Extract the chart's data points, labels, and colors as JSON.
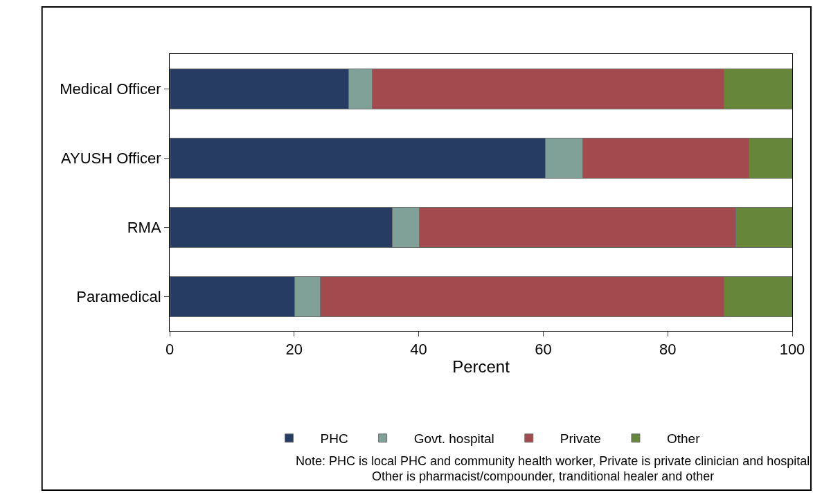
{
  "chart_data": {
    "type": "bar",
    "orientation": "horizontal",
    "stacked": true,
    "categories": [
      "Medical Officer",
      "AYUSH Officer",
      "RMA",
      "Paramedical"
    ],
    "series": [
      {
        "name": "PHC",
        "color": "#263c63",
        "values": [
          28.7,
          60.3,
          35.8,
          20.1
        ]
      },
      {
        "name": "Govt. hospital",
        "color": "#7fa197",
        "values": [
          3.8,
          6.0,
          4.3,
          4.1
        ]
      },
      {
        "name": "Private",
        "color": "#a34a4e",
        "values": [
          56.5,
          26.8,
          50.8,
          64.8
        ]
      },
      {
        "name": "Other",
        "color": "#66863a",
        "values": [
          11.0,
          6.9,
          9.1,
          11.0
        ]
      }
    ],
    "xlabel": "Percent",
    "xlim": [
      0,
      100
    ],
    "xticks": [
      0,
      20,
      40,
      60,
      80,
      100
    ],
    "legend": "bottom",
    "annotations": [
      "Note: PHC is local PHC and community health worker, Private is private clinician and hospital",
      "Other is pharmacist/compounder, tranditional healer and other"
    ]
  }
}
